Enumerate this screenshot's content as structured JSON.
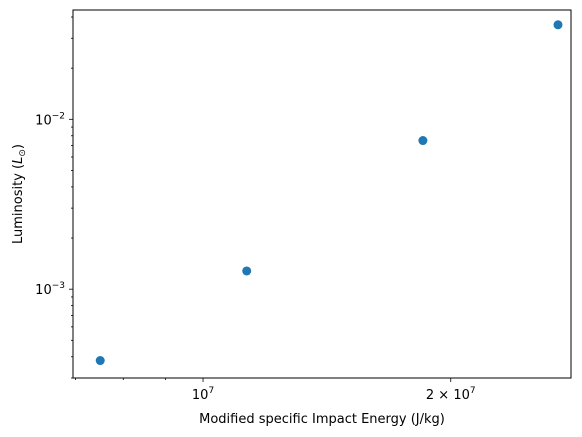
{
  "chart_data": {
    "type": "scatter",
    "xscale": "log",
    "yscale": "log",
    "xlabel": "Modified specific Impact Energy (J/kg)",
    "ylabel": "Luminosity",
    "ylabel_unit": "L",
    "ylabel_unit_sub": "⊙",
    "xlim": [
      6950000,
      28000000
    ],
    "ylim": [
      0.0003,
      0.044
    ],
    "x_ticks": [
      {
        "value": 10000000,
        "base": "10",
        "exp": "7",
        "prefix": ""
      },
      {
        "value": 20000000,
        "base": "10",
        "exp": "7",
        "prefix": "2 × "
      }
    ],
    "y_ticks": [
      {
        "value": 0.001,
        "base": "10",
        "exp": "−3"
      },
      {
        "value": 0.01,
        "base": "10",
        "exp": "−2"
      }
    ],
    "series": [
      {
        "color": "#1f77b4",
        "points": [
          {
            "x": 7500000,
            "y": 0.00038
          },
          {
            "x": 11300000,
            "y": 0.00128
          },
          {
            "x": 18500000,
            "y": 0.0075
          },
          {
            "x": 27000000,
            "y": 0.036
          }
        ]
      }
    ]
  }
}
